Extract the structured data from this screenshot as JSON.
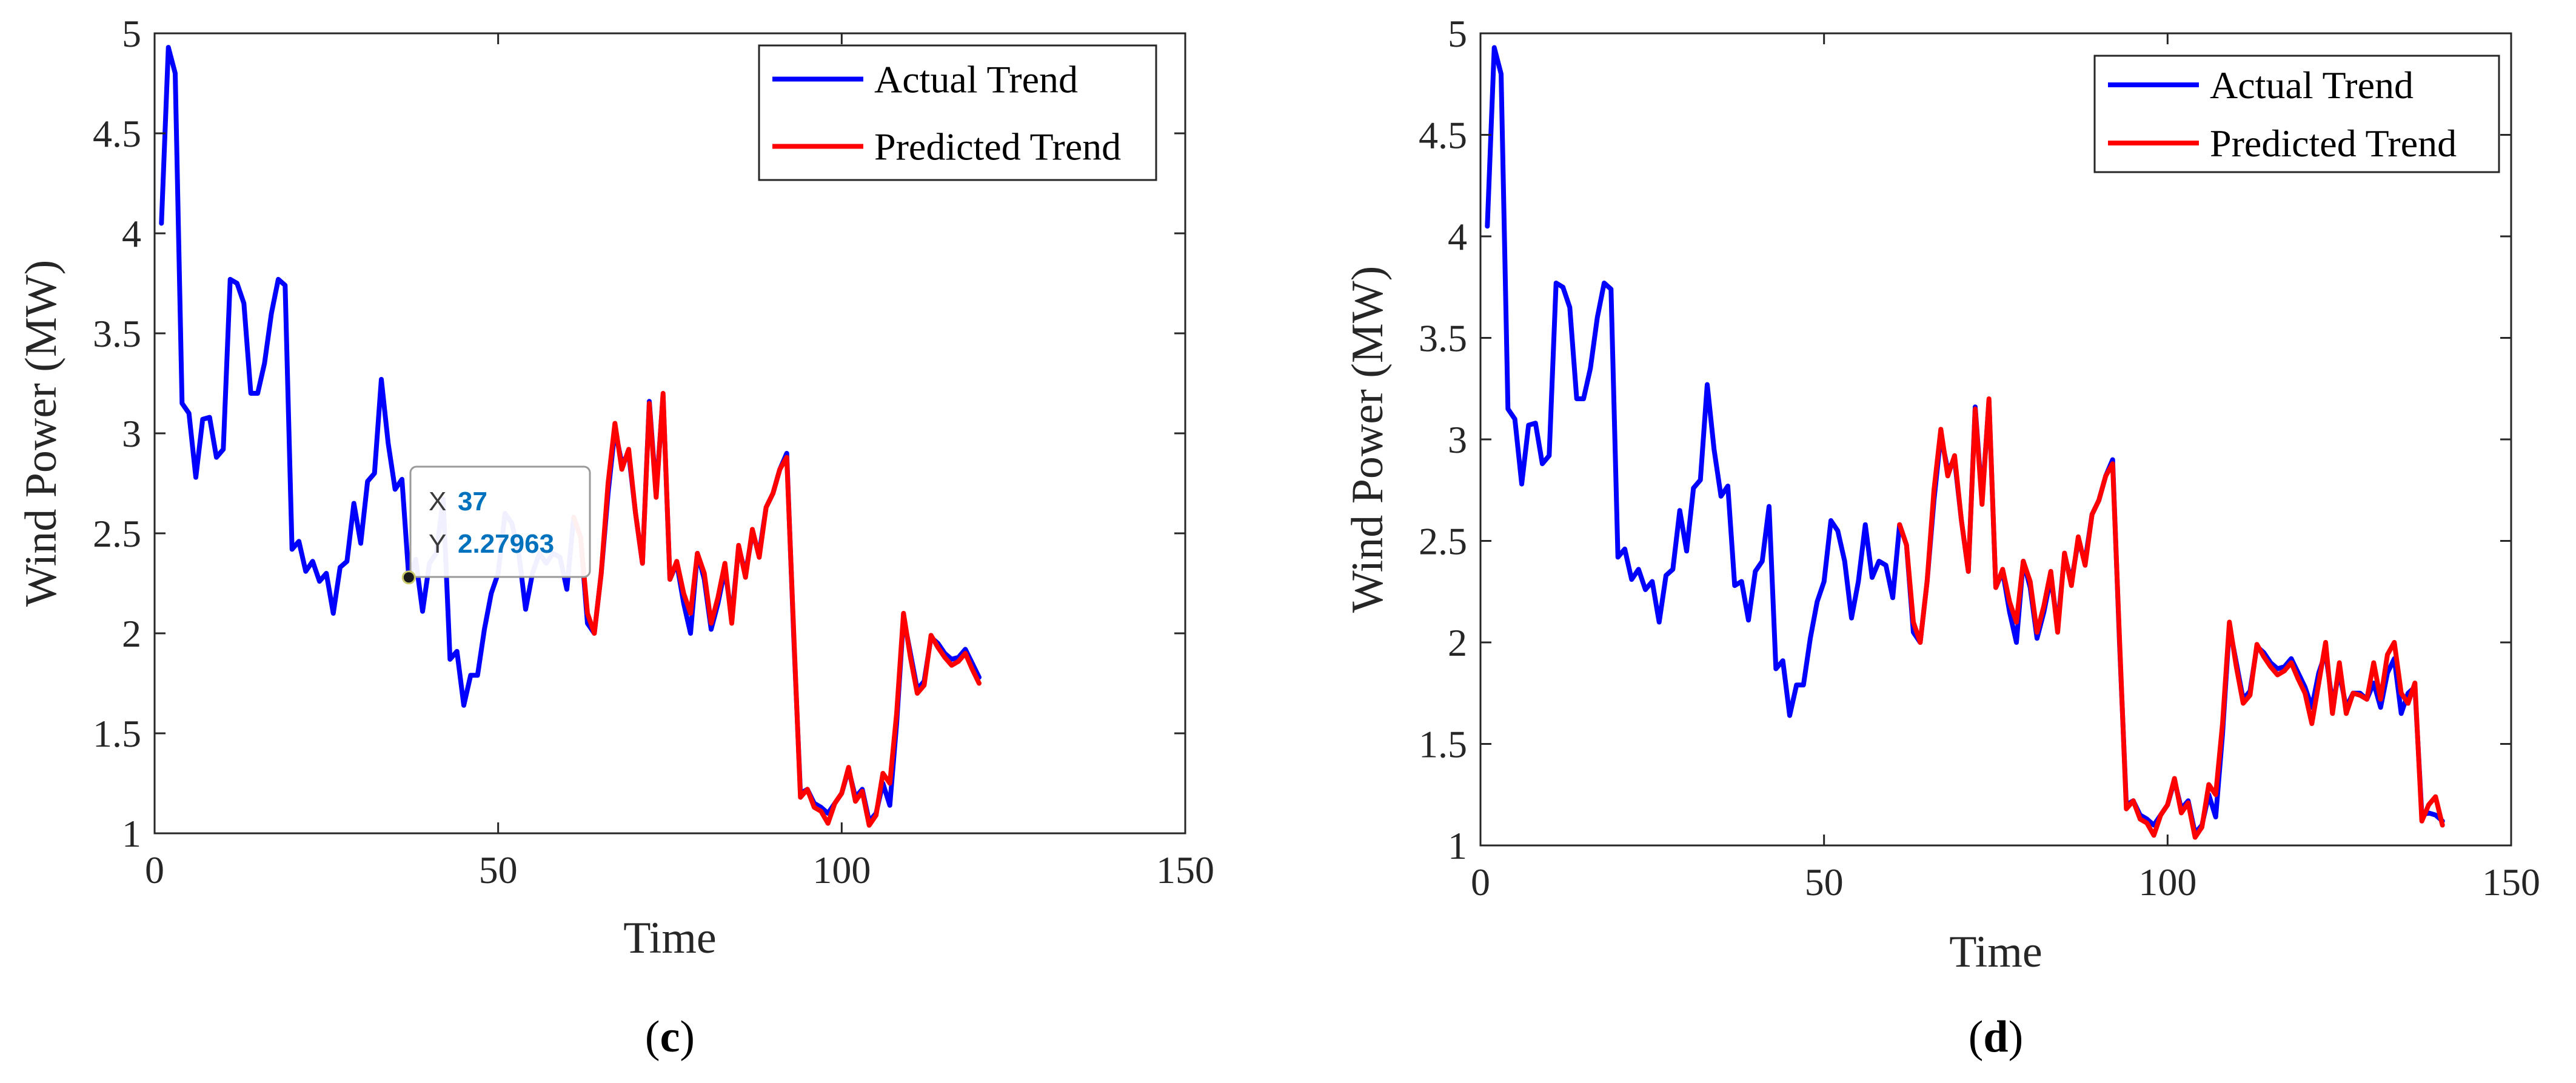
{
  "colors": {
    "actual": "#0000FF",
    "predicted": "#FF0000",
    "axis": "#262626",
    "datatip_value": "#0072BD"
  },
  "chart_data": [
    {
      "type": "line",
      "panel_label": "c",
      "title": "",
      "xlabel": "Time",
      "ylabel": "Wind Power (MW)",
      "xlim": [
        0,
        150
      ],
      "ylim": [
        1,
        5
      ],
      "xticks": [
        0,
        50,
        100,
        150
      ],
      "yticks": [
        1,
        1.5,
        2,
        2.5,
        3,
        3.5,
        4,
        4.5,
        5
      ],
      "ytick_labels": [
        "1",
        "1.5",
        "2",
        "2.5",
        "3",
        "3.5",
        "4",
        "4.5",
        "5"
      ],
      "legend_position": "top-right",
      "grid": false,
      "datatip": {
        "x_label": "X",
        "x_value": "37",
        "y_label": "Y",
        "y_value": "2.27963",
        "x": 37,
        "y": 2.27963
      },
      "series": [
        {
          "name": "Actual Trend",
          "color": "#0000FF",
          "x": [
            1,
            2,
            3,
            4,
            5,
            6,
            7,
            8,
            9,
            10,
            11,
            12,
            13,
            14,
            15,
            16,
            17,
            18,
            19,
            20,
            21,
            22,
            23,
            24,
            25,
            26,
            27,
            28,
            29,
            30,
            31,
            32,
            33,
            34,
            35,
            36,
            37,
            38,
            39,
            40,
            41,
            42,
            43,
            44,
            45,
            46,
            47,
            48,
            49,
            50,
            51,
            52,
            53,
            54,
            55,
            56,
            57,
            58,
            59,
            60,
            61,
            62,
            63,
            64,
            65,
            66,
            67,
            68,
            69,
            70,
            71,
            72,
            73,
            74,
            75,
            76,
            77,
            78,
            79,
            80,
            81,
            82,
            83,
            84,
            85,
            86,
            87,
            88,
            89,
            90,
            91,
            92,
            93,
            94,
            95,
            96,
            97,
            98,
            99,
            100,
            101,
            102,
            103,
            104,
            105,
            106,
            107,
            108,
            109,
            110,
            111,
            112,
            113,
            114,
            115,
            116,
            117,
            118,
            119,
            120
          ],
          "y": [
            4.05,
            4.93,
            4.8,
            3.15,
            3.1,
            2.78,
            3.07,
            3.08,
            2.88,
            2.92,
            3.77,
            3.75,
            3.65,
            3.2,
            3.2,
            3.35,
            3.6,
            3.77,
            3.74,
            2.42,
            2.46,
            2.31,
            2.36,
            2.26,
            2.3,
            2.1,
            2.33,
            2.36,
            2.65,
            2.45,
            2.76,
            2.8,
            3.27,
            2.95,
            2.72,
            2.77,
            2.28,
            2.37,
            2.11,
            2.35,
            2.4,
            2.67,
            1.87,
            1.91,
            1.64,
            1.79,
            1.79,
            2.02,
            2.2,
            2.3,
            2.6,
            2.55,
            2.4,
            2.12,
            2.3,
            2.4,
            2.35,
            2.4,
            2.38,
            2.22,
            2.58,
            2.48,
            2.05,
            2.0,
            2.3,
            2.7,
            3.02,
            2.85,
            2.9,
            2.6,
            2.35,
            3.16,
            2.7,
            3.19,
            2.27,
            2.35,
            2.15,
            2.0,
            2.4,
            2.27,
            2.02,
            2.15,
            2.32,
            2.08,
            2.43,
            2.3,
            2.5,
            2.4,
            2.63,
            2.7,
            2.82,
            2.9,
            2.0,
            1.2,
            1.22,
            1.15,
            1.13,
            1.1,
            1.15,
            1.2,
            1.32,
            1.18,
            1.22,
            1.06,
            1.1,
            1.25,
            1.14,
            1.55,
            2.08,
            1.9,
            1.72,
            1.76,
            1.98,
            1.95,
            1.9,
            1.87,
            1.88,
            1.92,
            1.85,
            1.78
          ]
        },
        {
          "name": "Predicted Trend",
          "color": "#FF0000",
          "x": [
            61,
            62,
            63,
            64,
            65,
            66,
            67,
            68,
            69,
            70,
            71,
            72,
            73,
            74,
            75,
            76,
            77,
            78,
            79,
            80,
            81,
            82,
            83,
            84,
            85,
            86,
            87,
            88,
            89,
            90,
            91,
            92,
            93,
            94,
            95,
            96,
            97,
            98,
            99,
            100,
            101,
            102,
            103,
            104,
            105,
            106,
            107,
            108,
            109,
            110,
            111,
            112,
            113,
            114,
            115,
            116,
            117,
            118,
            119,
            120
          ],
          "y": [
            2.58,
            2.48,
            2.1,
            2.0,
            2.3,
            2.75,
            3.05,
            2.82,
            2.92,
            2.6,
            2.35,
            3.15,
            2.68,
            3.2,
            2.27,
            2.36,
            2.2,
            2.1,
            2.4,
            2.3,
            2.05,
            2.18,
            2.35,
            2.05,
            2.44,
            2.28,
            2.52,
            2.38,
            2.63,
            2.7,
            2.82,
            2.88,
            2.02,
            1.18,
            1.22,
            1.13,
            1.11,
            1.05,
            1.15,
            1.2,
            1.33,
            1.16,
            1.21,
            1.04,
            1.09,
            1.3,
            1.25,
            1.6,
            2.1,
            1.88,
            1.7,
            1.74,
            1.99,
            1.93,
            1.88,
            1.84,
            1.86,
            1.9,
            1.82,
            1.75
          ]
        }
      ]
    },
    {
      "type": "line",
      "panel_label": "d",
      "title": "",
      "xlabel": "Time",
      "ylabel": "Wind Power (MW)",
      "xlim": [
        0,
        150
      ],
      "ylim": [
        1,
        5
      ],
      "xticks": [
        0,
        50,
        100,
        150
      ],
      "yticks": [
        1,
        1.5,
        2,
        2.5,
        3,
        3.5,
        4,
        4.5,
        5
      ],
      "ytick_labels": [
        "1",
        "1.5",
        "2",
        "2.5",
        "3",
        "3.5",
        "4",
        "4.5",
        "5"
      ],
      "legend_position": "top-right",
      "grid": false,
      "series": [
        {
          "name": "Actual Trend",
          "color": "#0000FF",
          "x": [
            1,
            2,
            3,
            4,
            5,
            6,
            7,
            8,
            9,
            10,
            11,
            12,
            13,
            14,
            15,
            16,
            17,
            18,
            19,
            20,
            21,
            22,
            23,
            24,
            25,
            26,
            27,
            28,
            29,
            30,
            31,
            32,
            33,
            34,
            35,
            36,
            37,
            38,
            39,
            40,
            41,
            42,
            43,
            44,
            45,
            46,
            47,
            48,
            49,
            50,
            51,
            52,
            53,
            54,
            55,
            56,
            57,
            58,
            59,
            60,
            61,
            62,
            63,
            64,
            65,
            66,
            67,
            68,
            69,
            70,
            71,
            72,
            73,
            74,
            75,
            76,
            77,
            78,
            79,
            80,
            81,
            82,
            83,
            84,
            85,
            86,
            87,
            88,
            89,
            90,
            91,
            92,
            93,
            94,
            95,
            96,
            97,
            98,
            99,
            100,
            101,
            102,
            103,
            104,
            105,
            106,
            107,
            108,
            109,
            110,
            111,
            112,
            113,
            114,
            115,
            116,
            117,
            118,
            119,
            120,
            121,
            122,
            123,
            124,
            125,
            126,
            127,
            128,
            129,
            130,
            131,
            132,
            133,
            134,
            135,
            136,
            137,
            138,
            139,
            140
          ],
          "y": [
            4.05,
            4.93,
            4.8,
            3.15,
            3.1,
            2.78,
            3.07,
            3.08,
            2.88,
            2.92,
            3.77,
            3.75,
            3.65,
            3.2,
            3.2,
            3.35,
            3.6,
            3.77,
            3.74,
            2.42,
            2.46,
            2.31,
            2.36,
            2.26,
            2.3,
            2.1,
            2.33,
            2.36,
            2.65,
            2.45,
            2.76,
            2.8,
            3.27,
            2.95,
            2.72,
            2.77,
            2.28,
            2.3,
            2.11,
            2.35,
            2.4,
            2.67,
            1.87,
            1.91,
            1.64,
            1.79,
            1.79,
            2.02,
            2.2,
            2.3,
            2.6,
            2.55,
            2.4,
            2.12,
            2.3,
            2.58,
            2.32,
            2.4,
            2.38,
            2.22,
            2.58,
            2.48,
            2.05,
            2.0,
            2.3,
            2.7,
            3.02,
            2.85,
            2.9,
            2.6,
            2.35,
            3.16,
            2.7,
            3.19,
            2.27,
            2.35,
            2.15,
            2.0,
            2.4,
            2.27,
            2.02,
            2.15,
            2.32,
            2.08,
            2.43,
            2.3,
            2.5,
            2.4,
            2.63,
            2.7,
            2.82,
            2.9,
            2.0,
            1.2,
            1.22,
            1.15,
            1.13,
            1.1,
            1.15,
            1.2,
            1.32,
            1.18,
            1.22,
            1.06,
            1.1,
            1.25,
            1.14,
            1.55,
            2.08,
            1.9,
            1.72,
            1.76,
            1.98,
            1.95,
            1.9,
            1.87,
            1.88,
            1.92,
            1.85,
            1.78,
            1.68,
            1.85,
            1.95,
            1.7,
            1.85,
            1.68,
            1.75,
            1.75,
            1.72,
            1.8,
            1.68,
            1.85,
            1.92,
            1.65,
            1.75,
            1.78,
            1.15,
            1.16,
            1.15,
            1.12
          ]
        },
        {
          "name": "Predicted Trend",
          "color": "#FF0000",
          "x": [
            61,
            62,
            63,
            64,
            65,
            66,
            67,
            68,
            69,
            70,
            71,
            72,
            73,
            74,
            75,
            76,
            77,
            78,
            79,
            80,
            81,
            82,
            83,
            84,
            85,
            86,
            87,
            88,
            89,
            90,
            91,
            92,
            93,
            94,
            95,
            96,
            97,
            98,
            99,
            100,
            101,
            102,
            103,
            104,
            105,
            106,
            107,
            108,
            109,
            110,
            111,
            112,
            113,
            114,
            115,
            116,
            117,
            118,
            119,
            120,
            121,
            122,
            123,
            124,
            125,
            126,
            127,
            128,
            129,
            130,
            131,
            132,
            133,
            134,
            135,
            136,
            137,
            138,
            139,
            140
          ],
          "y": [
            2.58,
            2.48,
            2.1,
            2.0,
            2.3,
            2.75,
            3.05,
            2.82,
            2.92,
            2.6,
            2.35,
            3.15,
            2.68,
            3.2,
            2.27,
            2.36,
            2.2,
            2.1,
            2.4,
            2.3,
            2.05,
            2.18,
            2.35,
            2.05,
            2.44,
            2.28,
            2.52,
            2.38,
            2.63,
            2.7,
            2.82,
            2.88,
            2.02,
            1.18,
            1.22,
            1.13,
            1.11,
            1.05,
            1.15,
            1.2,
            1.33,
            1.16,
            1.21,
            1.04,
            1.09,
            1.3,
            1.25,
            1.6,
            2.1,
            1.88,
            1.7,
            1.74,
            1.99,
            1.93,
            1.88,
            1.84,
            1.86,
            1.9,
            1.82,
            1.75,
            1.6,
            1.8,
            2.0,
            1.65,
            1.9,
            1.65,
            1.75,
            1.74,
            1.72,
            1.9,
            1.72,
            1.94,
            2.0,
            1.75,
            1.7,
            1.8,
            1.12,
            1.2,
            1.24,
            1.1
          ]
        }
      ]
    }
  ]
}
